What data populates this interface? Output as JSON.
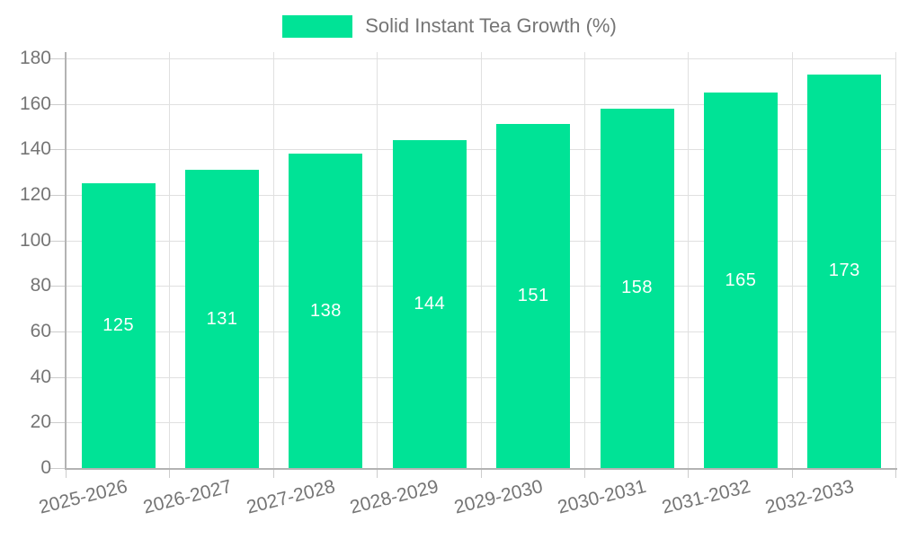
{
  "chart_data": {
    "type": "bar",
    "title": "",
    "xlabel": "",
    "ylabel": "",
    "legend": {
      "label": "Solid Instant Tea Growth (%)",
      "position": "top"
    },
    "categories": [
      "2025-2026",
      "2026-2027",
      "2027-2028",
      "2028-2029",
      "2029-2030",
      "2030-2031",
      "2031-2032",
      "2032-2033"
    ],
    "series": [
      {
        "name": "Solid Instant Tea Growth (%)",
        "values": [
          125,
          131,
          138,
          144,
          151,
          158,
          165,
          173
        ]
      }
    ],
    "value_labels_shown": true,
    "ylim": [
      0,
      180
    ],
    "yticks": [
      0,
      20,
      40,
      60,
      80,
      100,
      120,
      140,
      160,
      180
    ],
    "grid": true,
    "x_label_rotation_deg": -14,
    "colors": {
      "bar": "#00E396",
      "value_label": "#ffffff",
      "axis_text": "#757575",
      "gridline": "#e0e0e0",
      "tick": "#cccccc",
      "axis_line": "#b3b3b3",
      "background": "#ffffff"
    }
  }
}
